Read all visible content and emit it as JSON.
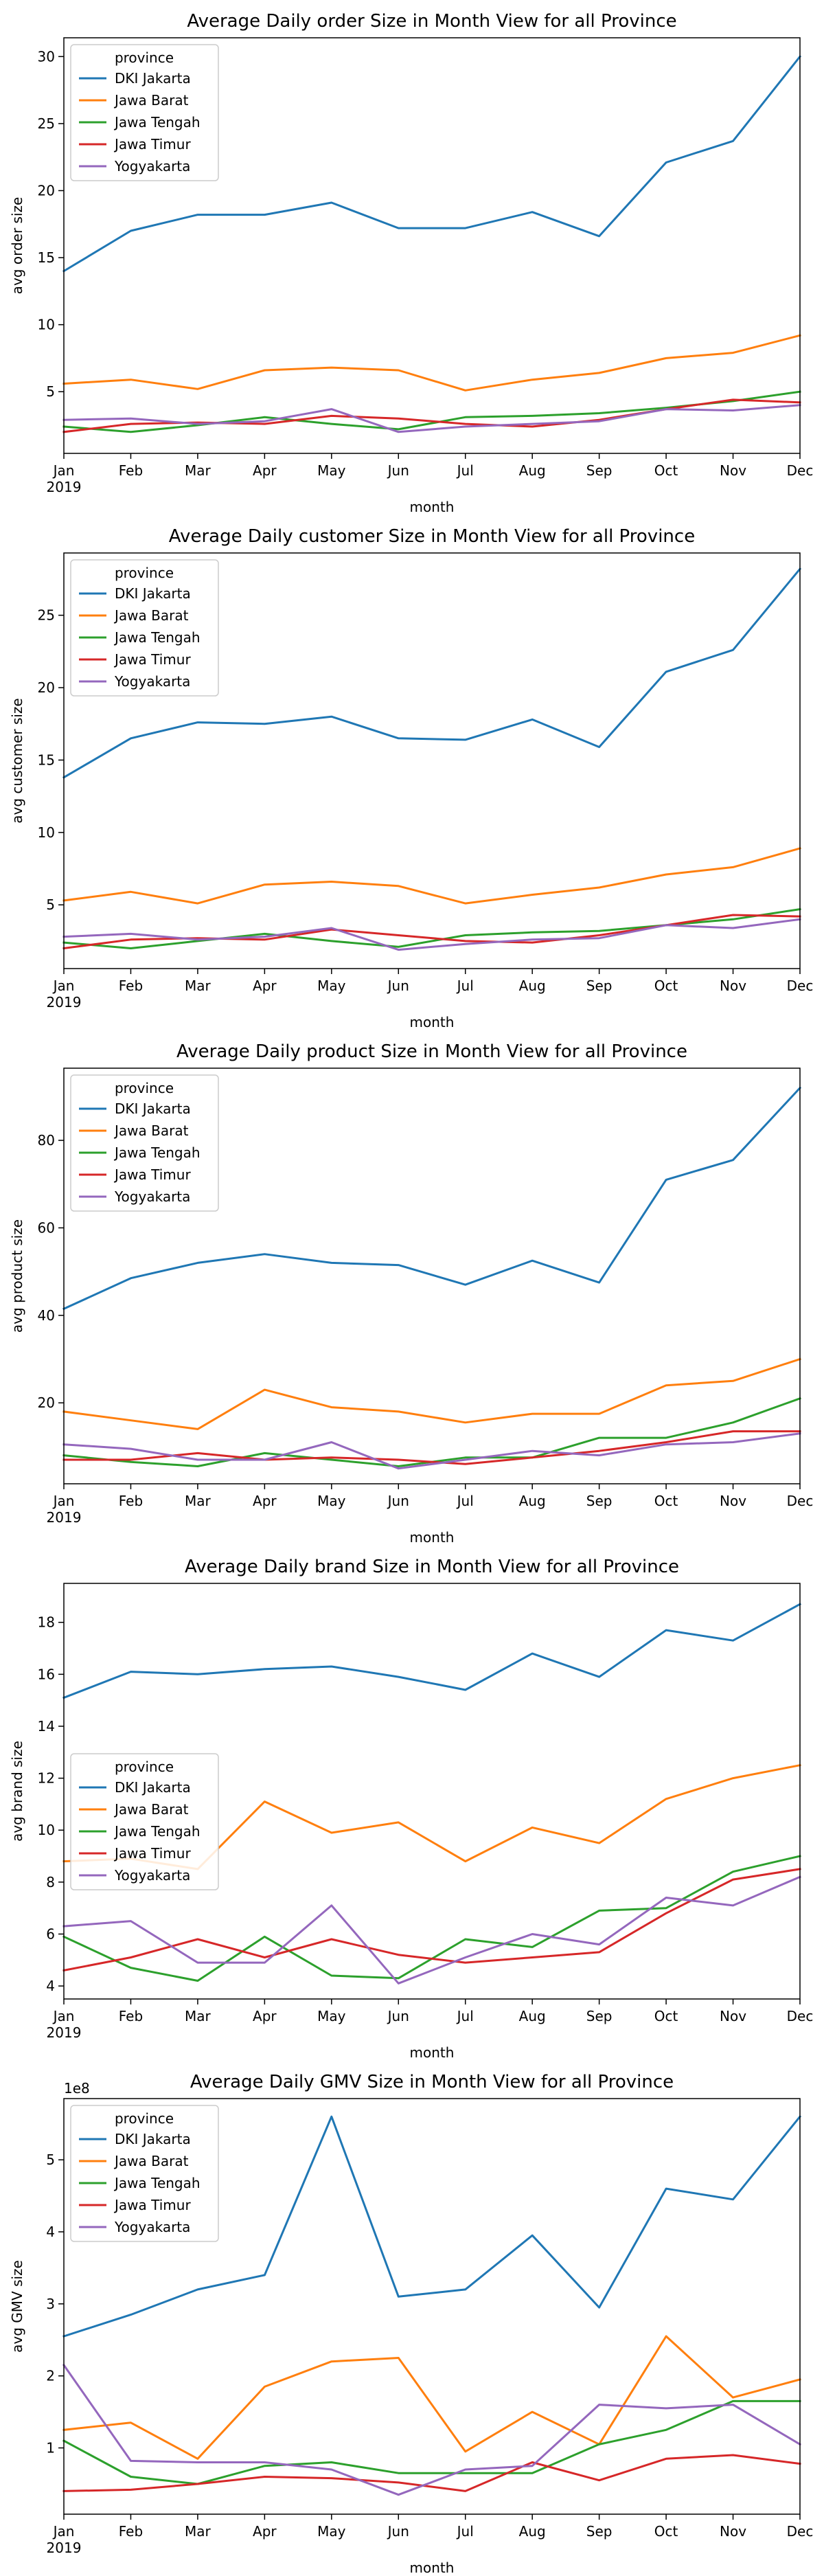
{
  "colors": {
    "DKI Jakarta": "#1f77b4",
    "Jawa Barat": "#ff7f0e",
    "Jawa Tengah": "#2ca02c",
    "Jawa Timur": "#d62728",
    "Yogyakarta": "#9467bd"
  },
  "chart_data": [
    {
      "type": "line",
      "title": "Average Daily order Size in Month View for all Province",
      "xlabel": "month",
      "ylabel": "avg order size",
      "categories": [
        "Jan",
        "Feb",
        "Mar",
        "Apr",
        "May",
        "Jun",
        "Jul",
        "Aug",
        "Sep",
        "Oct",
        "Nov",
        "Dec"
      ],
      "year_label": "2019",
      "ylim": [
        0.4,
        31.4
      ],
      "yticks": [
        5,
        10,
        15,
        20,
        25,
        30
      ],
      "legend": {
        "title": "province",
        "placement": "upper-left"
      },
      "series": [
        {
          "name": "DKI Jakarta",
          "values": [
            14.0,
            17.0,
            18.2,
            18.2,
            19.1,
            17.2,
            17.2,
            18.4,
            16.6,
            22.1,
            23.7,
            30.0
          ]
        },
        {
          "name": "Jawa Barat",
          "values": [
            5.6,
            5.9,
            5.2,
            6.6,
            6.8,
            6.6,
            5.1,
            5.9,
            6.4,
            7.5,
            7.9,
            9.2
          ]
        },
        {
          "name": "Jawa Tengah",
          "values": [
            2.4,
            2.0,
            2.5,
            3.1,
            2.6,
            2.2,
            3.1,
            3.2,
            3.4,
            3.8,
            4.3,
            5.0
          ]
        },
        {
          "name": "Jawa Timur",
          "values": [
            2.0,
            2.6,
            2.7,
            2.6,
            3.2,
            3.0,
            2.6,
            2.4,
            2.9,
            3.7,
            4.4,
            4.2
          ]
        },
        {
          "name": "Yogyakarta",
          "values": [
            2.9,
            3.0,
            2.6,
            2.8,
            3.7,
            2.0,
            2.4,
            2.6,
            2.8,
            3.7,
            3.6,
            4.0
          ]
        }
      ]
    },
    {
      "type": "line",
      "title": "Average Daily customer Size in Month View for all Province",
      "xlabel": "month",
      "ylabel": "avg customer size",
      "categories": [
        "Jan",
        "Feb",
        "Mar",
        "Apr",
        "May",
        "Jun",
        "Jul",
        "Aug",
        "Sep",
        "Oct",
        "Nov",
        "Dec"
      ],
      "year_label": "2019",
      "ylim": [
        0.6,
        29.3
      ],
      "yticks": [
        5,
        10,
        15,
        20,
        25
      ],
      "legend": {
        "title": "province",
        "placement": "upper-left"
      },
      "series": [
        {
          "name": "DKI Jakarta",
          "values": [
            13.8,
            16.5,
            17.6,
            17.5,
            18.0,
            16.5,
            16.4,
            17.8,
            15.9,
            21.1,
            22.6,
            28.2
          ]
        },
        {
          "name": "Jawa Barat",
          "values": [
            5.3,
            5.9,
            5.1,
            6.4,
            6.6,
            6.3,
            5.1,
            5.7,
            6.2,
            7.1,
            7.6,
            8.9
          ]
        },
        {
          "name": "Jawa Tengah",
          "values": [
            2.4,
            2.0,
            2.5,
            3.0,
            2.5,
            2.1,
            2.9,
            3.1,
            3.2,
            3.6,
            4.0,
            4.7
          ]
        },
        {
          "name": "Jawa Timur",
          "values": [
            2.0,
            2.6,
            2.7,
            2.6,
            3.3,
            2.9,
            2.5,
            2.4,
            2.9,
            3.6,
            4.3,
            4.2
          ]
        },
        {
          "name": "Yogyakarta",
          "values": [
            2.8,
            3.0,
            2.6,
            2.8,
            3.4,
            1.9,
            2.3,
            2.6,
            2.7,
            3.6,
            3.4,
            4.0
          ]
        }
      ]
    },
    {
      "type": "line",
      "title": "Average Daily product Size in Month View for all Province",
      "xlabel": "month",
      "ylabel": "avg product size",
      "categories": [
        "Jan",
        "Feb",
        "Mar",
        "Apr",
        "May",
        "Jun",
        "Jul",
        "Aug",
        "Sep",
        "Oct",
        "Nov",
        "Dec"
      ],
      "year_label": "2019",
      "ylim": [
        1.5,
        96.5
      ],
      "yticks": [
        20,
        40,
        60,
        80
      ],
      "legend": {
        "title": "province",
        "placement": "upper-left"
      },
      "series": [
        {
          "name": "DKI Jakarta",
          "values": [
            41.5,
            48.5,
            52.0,
            54.0,
            52.0,
            51.5,
            47.0,
            52.5,
            47.5,
            71.0,
            75.5,
            92.0
          ]
        },
        {
          "name": "Jawa Barat",
          "values": [
            18.0,
            16.0,
            14.0,
            23.0,
            19.0,
            18.0,
            15.5,
            17.5,
            17.5,
            24.0,
            25.0,
            30.0
          ]
        },
        {
          "name": "Jawa Tengah",
          "values": [
            8.0,
            6.5,
            5.5,
            8.5,
            7.0,
            5.5,
            7.5,
            7.5,
            12.0,
            12.0,
            15.5,
            21.0
          ]
        },
        {
          "name": "Jawa Timur",
          "values": [
            7.0,
            7.0,
            8.5,
            7.0,
            7.5,
            7.0,
            6.0,
            7.5,
            9.0,
            11.0,
            13.5,
            13.5
          ]
        },
        {
          "name": "Yogyakarta",
          "values": [
            10.5,
            9.5,
            7.0,
            7.0,
            11.0,
            5.0,
            7.0,
            9.0,
            8.0,
            10.5,
            11.0,
            13.0
          ]
        }
      ]
    },
    {
      "type": "line",
      "title": "Average Daily brand Size in Month View for all Province",
      "xlabel": "month",
      "ylabel": "avg brand size",
      "categories": [
        "Jan",
        "Feb",
        "Mar",
        "Apr",
        "May",
        "Jun",
        "Jul",
        "Aug",
        "Sep",
        "Oct",
        "Nov",
        "Dec"
      ],
      "year_label": "2019",
      "ylim": [
        3.5,
        19.5
      ],
      "yticks": [
        4,
        6,
        8,
        10,
        12,
        14,
        16,
        18
      ],
      "legend": {
        "title": "province",
        "placement": "center-left"
      },
      "series": [
        {
          "name": "DKI Jakarta",
          "values": [
            15.1,
            16.1,
            16.0,
            16.2,
            16.3,
            15.9,
            15.4,
            16.8,
            15.9,
            17.7,
            17.3,
            18.7
          ]
        },
        {
          "name": "Jawa Barat",
          "values": [
            8.8,
            8.9,
            8.5,
            11.1,
            9.9,
            10.3,
            8.8,
            10.1,
            9.5,
            11.2,
            12.0,
            12.5
          ]
        },
        {
          "name": "Jawa Tengah",
          "values": [
            5.9,
            4.7,
            4.2,
            5.9,
            4.4,
            4.3,
            5.8,
            5.5,
            6.9,
            7.0,
            8.4,
            9.0
          ]
        },
        {
          "name": "Jawa Timur",
          "values": [
            4.6,
            5.1,
            5.8,
            5.1,
            5.8,
            5.2,
            4.9,
            5.1,
            5.3,
            6.8,
            8.1,
            8.5
          ]
        },
        {
          "name": "Yogyakarta",
          "values": [
            6.3,
            6.5,
            4.9,
            4.9,
            7.1,
            4.1,
            5.1,
            6.0,
            5.6,
            7.4,
            7.1,
            8.2
          ]
        }
      ]
    },
    {
      "type": "line",
      "title": "Average Daily GMV Size in Month View for all Province",
      "xlabel": "month",
      "ylabel": "avg GMV size",
      "offset_text": "1e8",
      "categories": [
        "Jan",
        "Feb",
        "Mar",
        "Apr",
        "May",
        "Jun",
        "Jul",
        "Aug",
        "Sep",
        "Oct",
        "Nov",
        "Dec"
      ],
      "year_label": "2019",
      "ylim": [
        0.08,
        5.85
      ],
      "yticks": [
        1,
        2,
        3,
        4,
        5
      ],
      "legend": {
        "title": "province",
        "placement": "upper-left"
      },
      "series": [
        {
          "name": "DKI Jakarta",
          "values": [
            2.55,
            2.85,
            3.2,
            3.4,
            5.6,
            3.1,
            3.2,
            3.95,
            2.95,
            4.6,
            4.45,
            5.6
          ]
        },
        {
          "name": "Jawa Barat",
          "values": [
            1.25,
            1.35,
            0.85,
            1.85,
            2.2,
            2.25,
            0.95,
            1.5,
            1.05,
            2.55,
            1.7,
            1.95
          ]
        },
        {
          "name": "Jawa Tengah",
          "values": [
            1.1,
            0.6,
            0.5,
            0.75,
            0.8,
            0.65,
            0.65,
            0.65,
            1.05,
            1.25,
            1.65,
            1.65
          ]
        },
        {
          "name": "Jawa Timur",
          "values": [
            0.4,
            0.42,
            0.5,
            0.6,
            0.58,
            0.52,
            0.4,
            0.8,
            0.55,
            0.85,
            0.9,
            0.78
          ]
        },
        {
          "name": "Yogyakarta",
          "values": [
            2.15,
            0.82,
            0.8,
            0.8,
            0.7,
            0.35,
            0.7,
            0.75,
            1.6,
            1.55,
            1.6,
            1.05
          ]
        }
      ]
    }
  ]
}
